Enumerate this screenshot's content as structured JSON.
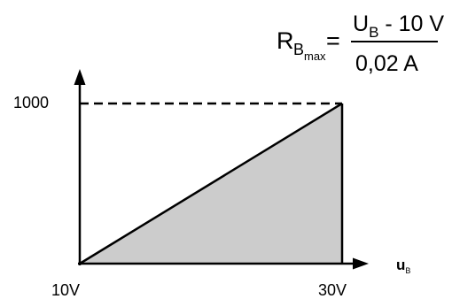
{
  "formula": {
    "lhs_main": "R",
    "lhs_sub": "B",
    "lhs_subsub": "max",
    "equals": "=",
    "numerator_main": "U",
    "numerator_sub": "B",
    "numerator_rest": " - 10 V",
    "denominator": "0,02 A"
  },
  "chart_data": {
    "type": "area",
    "x": [
      10,
      30
    ],
    "y": [
      0,
      1000
    ],
    "xlim": [
      10,
      30
    ],
    "ylim": [
      0,
      1000
    ],
    "x_tick_labels": [
      "10V",
      "30V"
    ],
    "y_tick_labels": [
      "1000"
    ],
    "xlabel_main": "u",
    "xlabel_sub": "B",
    "ylabel": "",
    "reference_line_y": 1000,
    "fill_color": "#cccccc",
    "line_color": "#000000",
    "grid": false
  }
}
